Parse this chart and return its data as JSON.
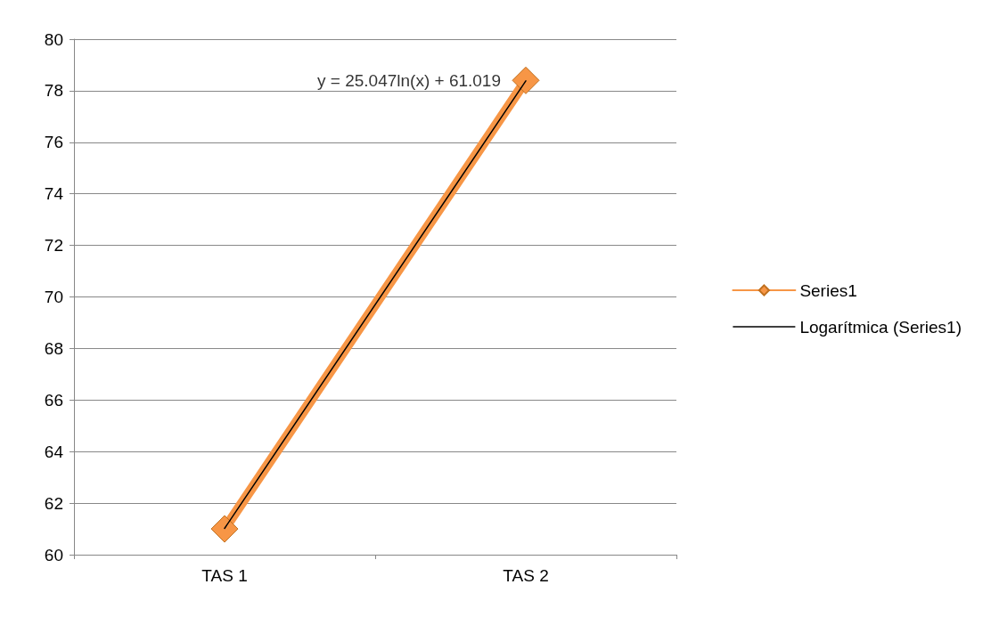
{
  "chart_data": {
    "type": "line",
    "categories": [
      "TAS 1",
      "TAS 2"
    ],
    "series": [
      {
        "name": "Series1",
        "color": "#f79646",
        "values": [
          61.0,
          78.4
        ],
        "marker": "diamond"
      },
      {
        "name": "Logarítmica (Series1)",
        "type": "line",
        "color": "#000000",
        "values": [
          61.02,
          78.38
        ],
        "marker": "none"
      }
    ],
    "ylim": [
      60,
      80
    ],
    "yticks": [
      60,
      62,
      64,
      66,
      68,
      70,
      72,
      74,
      76,
      78,
      80
    ],
    "grid": "y",
    "legend": "right",
    "annotations": [
      {
        "text": "y = 25.047ln(x) + 61.019",
        "x": "TAS 2",
        "y": 78.4
      }
    ]
  }
}
